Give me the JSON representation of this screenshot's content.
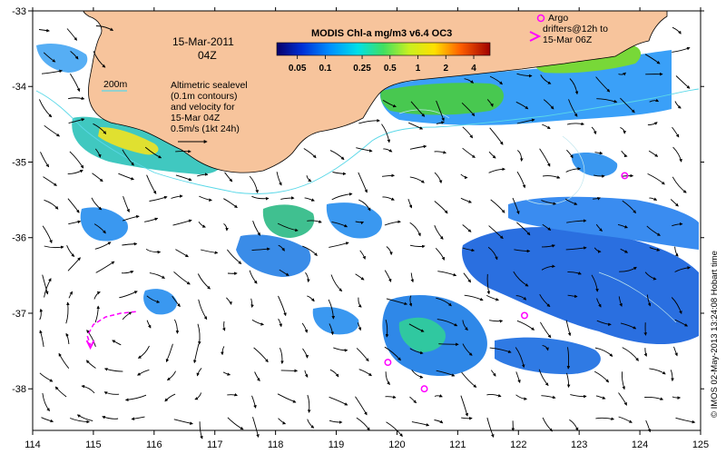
{
  "header": {
    "date": "15-Mar-2011",
    "time": "04Z"
  },
  "colorbar": {
    "title": "MODIS Chl-a mg/m3 v6.4 OC3",
    "tick_labels": [
      "0.05",
      "0.1",
      "0.25",
      "0.5",
      "1",
      "2",
      "4"
    ],
    "tick_values": [
      0.05,
      0.1,
      0.25,
      0.5,
      1,
      2,
      4
    ],
    "range": [
      0.03,
      6
    ]
  },
  "legend": {
    "isobath": "200m",
    "notes": [
      "Altimetric sealevel",
      "(0.1m contours)",
      "and velocity for",
      "15-Mar 04Z",
      "0.5m/s (1kt 24h)"
    ],
    "argo": [
      "Argo",
      "drifters@12h to",
      "15-Mar 06Z"
    ]
  },
  "credit": "© IMOS 02-May-2013 13:24:08 Hobart time",
  "chart_data": {
    "type": "map",
    "x_axis": {
      "ticks": [
        114,
        115,
        116,
        117,
        118,
        119,
        120,
        121,
        122,
        123,
        124,
        125
      ],
      "range": [
        114,
        125
      ]
    },
    "y_axis": {
      "ticks": [
        -33,
        -34,
        -35,
        -36,
        -37,
        -38
      ],
      "range": [
        -38.55,
        -33
      ]
    },
    "argo_floats": [
      {
        "lon": 123.75,
        "lat": -35.18
      },
      {
        "lon": 122.1,
        "lat": -37.03
      },
      {
        "lon": 119.85,
        "lat": -37.65
      },
      {
        "lon": 120.45,
        "lat": -38.0
      }
    ],
    "drifter_track": [
      {
        "lon": 115.7,
        "lat": -36.98
      },
      {
        "lon": 115.45,
        "lat": -37.0
      },
      {
        "lon": 115.2,
        "lat": -37.05
      },
      {
        "lon": 115.0,
        "lat": -37.15
      },
      {
        "lon": 114.9,
        "lat": -37.3
      },
      {
        "lon": 114.95,
        "lat": -37.42
      }
    ]
  }
}
